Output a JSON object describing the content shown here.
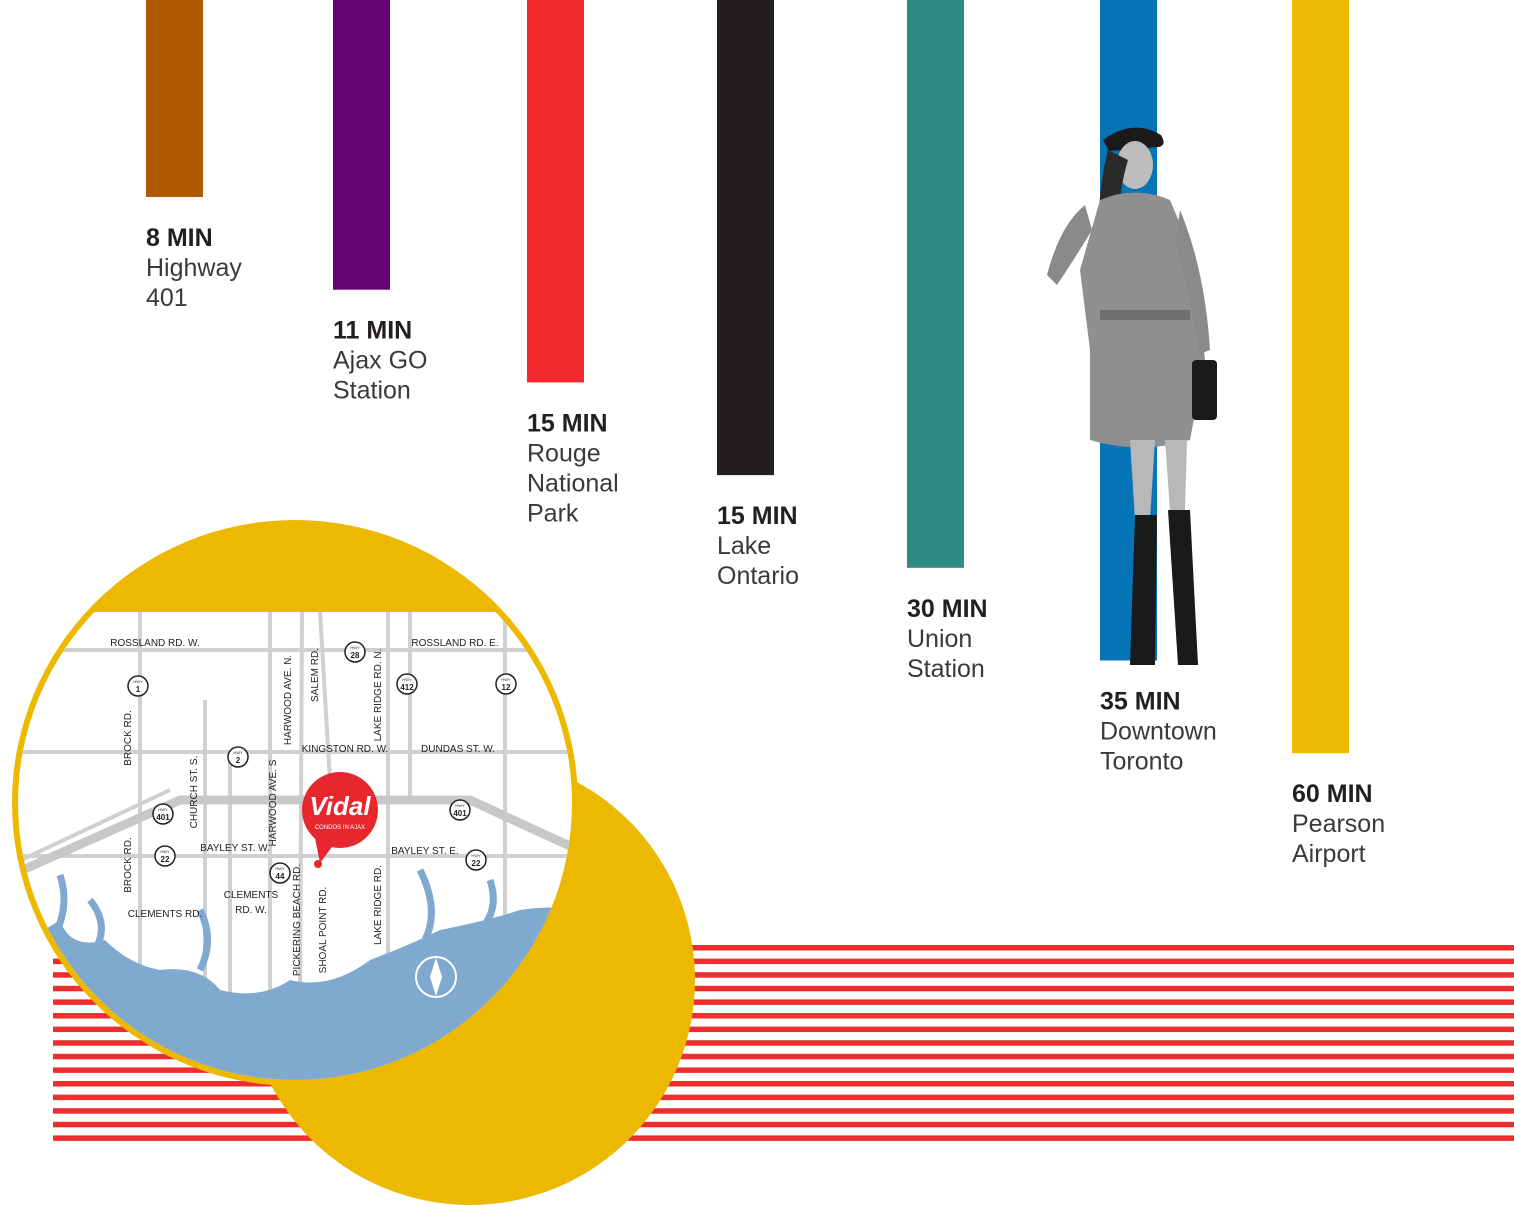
{
  "destinations": [
    {
      "time": "8 MIN",
      "lines": [
        "Highway",
        "401"
      ],
      "color": "#b05a00"
    },
    {
      "time": "11 MIN",
      "lines": [
        "Ajax GO",
        "Station"
      ],
      "color": "#660075"
    },
    {
      "time": "15 MIN",
      "lines": [
        "Rouge",
        "National",
        "Park"
      ],
      "color": "#f1292d"
    },
    {
      "time": "15 MIN",
      "lines": [
        "Lake",
        "Ontario"
      ],
      "color": "#231f20"
    },
    {
      "time": "30 MIN",
      "lines": [
        "Union",
        "Station"
      ],
      "color": "#2e8b83"
    },
    {
      "time": "35 MIN",
      "lines": [
        "Downtown",
        "Toronto"
      ],
      "color": "#0575b7"
    },
    {
      "time": "60 MIN",
      "lines": [
        "Pearson",
        "Airport"
      ],
      "color": "#ecb800"
    }
  ],
  "map": {
    "labels": [
      "ROSSLAND RD. W.",
      "ROSSLAND RD. E.",
      "HARWOOD AVE. N.",
      "SALEM RD.",
      "LAKE RIDGE RD. N.",
      "BROCK RD.",
      "KINGSTON RD. W.",
      "DUNDAS ST. W.",
      "CHURCH ST. S.",
      "HARWOOD AVE. S",
      "BAYLEY ST. W.",
      "BAYLEY ST. E.",
      "BROCK RD.",
      "CLEMENTS",
      "RD. W.",
      "CLEMENTS RD.",
      "PICKERING BEACH RD.",
      "SHOAL POINT RD.",
      "LAKE RIDGE RD."
    ],
    "hwy_label": "HWY",
    "highways": [
      "1",
      "28",
      "412",
      "12",
      "2",
      "401",
      "401",
      "22",
      "44",
      "22"
    ],
    "logo": "Vidal",
    "logo_tagline": "CONDOS IN AJAX"
  }
}
